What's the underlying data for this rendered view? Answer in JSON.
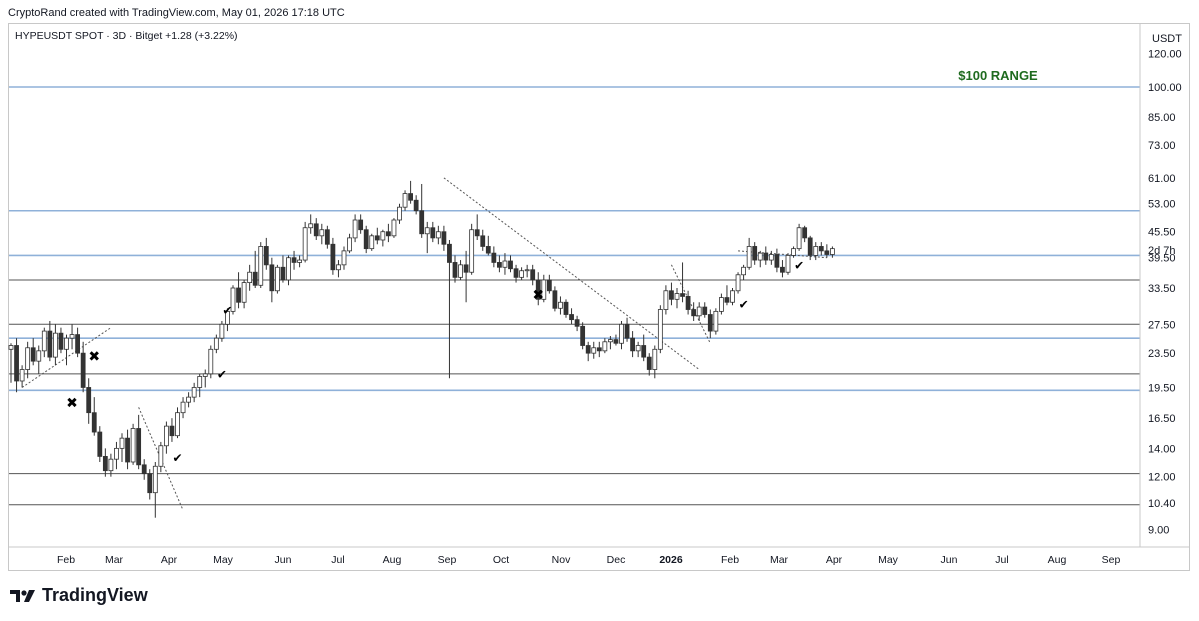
{
  "header": {
    "created_by": "CryptoRand created with TradingView.com, May 01, 2026 17:18 UTC"
  },
  "legend": {
    "symbol": "HYPEUSDT SPOT · 3D · Bitget",
    "change": "+1.28 (+3.22%)"
  },
  "brand": {
    "name": "TradingView",
    "icon": "tradingview-logo-icon"
  },
  "chart_data": {
    "type": "candlestick",
    "currency_label": "USDT",
    "y_scale": "log",
    "y_ticks": [
      "120.00",
      "100.00",
      "85.00",
      "73.00",
      "61.00",
      "53.00",
      "45.50",
      "39.50",
      "33.50",
      "27.50",
      "23.50",
      "19.50",
      "16.50",
      "14.00",
      "12.00",
      "10.40",
      "9.00"
    ],
    "countdown": "2d 7h",
    "x_ticks": [
      "Feb",
      "Mar",
      "Apr",
      "May",
      "Jun",
      "Jul",
      "Aug",
      "Sep",
      "Oct",
      "Nov",
      "Dec",
      "2026",
      "Feb",
      "Mar",
      "Apr",
      "May",
      "Jun",
      "Jul",
      "Aug",
      "Sep"
    ],
    "annotation": {
      "text": "$100 RANGE",
      "color": "#1f6b1f"
    },
    "horizontal_levels": [
      {
        "price": 100,
        "color": "#8fb1d9"
      },
      {
        "price": 51,
        "color": "#8fb1d9"
      },
      {
        "price": 40,
        "color": "#8fb1d9"
      },
      {
        "price": 35,
        "color": "#555555"
      },
      {
        "price": 27.5,
        "color": "#555555"
      },
      {
        "price": 25.5,
        "color": "#8fb1d9"
      },
      {
        "price": 21,
        "color": "#555555"
      },
      {
        "price": 19.2,
        "color": "#8fb1d9"
      },
      {
        "price": 12.2,
        "color": "#555555"
      },
      {
        "price": 10.3,
        "color": "#555555"
      }
    ],
    "markers": [
      {
        "type": "x",
        "index": 15,
        "price": 22.5
      },
      {
        "type": "x",
        "index": 11,
        "price": 17.5
      },
      {
        "type": "check",
        "index": 30,
        "price": 13
      },
      {
        "type": "check",
        "index": 39,
        "price": 29
      },
      {
        "type": "check",
        "index": 38,
        "price": 20.5
      },
      {
        "type": "x",
        "index": 95,
        "price": 31.5
      },
      {
        "type": "check",
        "index": 132,
        "price": 30
      },
      {
        "type": "check",
        "index": 142,
        "price": 37
      }
    ],
    "trendlines": [
      {
        "from": [
          2,
          19.5
        ],
        "to": [
          18,
          27
        ]
      },
      {
        "from": [
          23,
          17.5
        ],
        "to": [
          31,
          10
        ]
      },
      {
        "from": [
          78,
          61
        ],
        "to": [
          124,
          21.5
        ]
      },
      {
        "from": [
          119,
          38
        ],
        "to": [
          126,
          24.8
        ]
      },
      {
        "from": [
          131,
          41
        ],
        "to": [
          147,
          39.5
        ]
      }
    ],
    "candles": [
      {
        "o": 24.0,
        "h": 24.8,
        "l": 20.0,
        "c": 24.5
      },
      {
        "o": 24.5,
        "h": 25.5,
        "l": 19.0,
        "c": 20.2
      },
      {
        "o": 20.2,
        "h": 22.0,
        "l": 19.5,
        "c": 21.5
      },
      {
        "o": 21.5,
        "h": 25.0,
        "l": 20.5,
        "c": 24.2
      },
      {
        "o": 24.2,
        "h": 25.5,
        "l": 22.0,
        "c": 22.5
      },
      {
        "o": 22.5,
        "h": 24.5,
        "l": 21.0,
        "c": 23.8
      },
      {
        "o": 23.8,
        "h": 27.0,
        "l": 23.0,
        "c": 26.5
      },
      {
        "o": 26.5,
        "h": 28.0,
        "l": 22.5,
        "c": 23.0
      },
      {
        "o": 23.0,
        "h": 27.5,
        "l": 22.0,
        "c": 26.2
      },
      {
        "o": 26.2,
        "h": 27.0,
        "l": 23.5,
        "c": 24.0
      },
      {
        "o": 24.0,
        "h": 26.0,
        "l": 22.0,
        "c": 25.5
      },
      {
        "o": 25.5,
        "h": 27.5,
        "l": 24.0,
        "c": 26.0
      },
      {
        "o": 26.0,
        "h": 27.0,
        "l": 23.0,
        "c": 23.5
      },
      {
        "o": 23.5,
        "h": 25.0,
        "l": 19.0,
        "c": 19.5
      },
      {
        "o": 19.5,
        "h": 20.5,
        "l": 16.0,
        "c": 17.0
      },
      {
        "o": 17.0,
        "h": 18.5,
        "l": 15.0,
        "c": 15.3
      },
      {
        "o": 15.3,
        "h": 15.8,
        "l": 13.0,
        "c": 13.4
      },
      {
        "o": 13.4,
        "h": 14.0,
        "l": 12.0,
        "c": 12.4
      },
      {
        "o": 12.4,
        "h": 13.6,
        "l": 12.0,
        "c": 13.2
      },
      {
        "o": 13.2,
        "h": 14.5,
        "l": 12.5,
        "c": 14.0
      },
      {
        "o": 14.0,
        "h": 15.2,
        "l": 13.0,
        "c": 14.8
      },
      {
        "o": 14.8,
        "h": 15.5,
        "l": 12.5,
        "c": 13.0
      },
      {
        "o": 13.0,
        "h": 16.0,
        "l": 12.8,
        "c": 15.6
      },
      {
        "o": 15.6,
        "h": 16.8,
        "l": 12.5,
        "c": 12.8
      },
      {
        "o": 12.8,
        "h": 13.2,
        "l": 11.8,
        "c": 12.2
      },
      {
        "o": 12.2,
        "h": 12.5,
        "l": 10.6,
        "c": 11.0
      },
      {
        "o": 11.0,
        "h": 13.0,
        "l": 9.6,
        "c": 12.7
      },
      {
        "o": 12.7,
        "h": 14.5,
        "l": 12.3,
        "c": 14.2
      },
      {
        "o": 14.2,
        "h": 16.2,
        "l": 13.6,
        "c": 15.8
      },
      {
        "o": 15.8,
        "h": 16.5,
        "l": 14.5,
        "c": 15.0
      },
      {
        "o": 15.0,
        "h": 17.5,
        "l": 14.8,
        "c": 17.0
      },
      {
        "o": 17.0,
        "h": 18.5,
        "l": 16.5,
        "c": 18.0
      },
      {
        "o": 18.0,
        "h": 19.0,
        "l": 17.5,
        "c": 18.5
      },
      {
        "o": 18.5,
        "h": 20.0,
        "l": 18.0,
        "c": 19.5
      },
      {
        "o": 19.5,
        "h": 21.0,
        "l": 18.5,
        "c": 20.7
      },
      {
        "o": 20.7,
        "h": 21.5,
        "l": 19.5,
        "c": 21.0
      },
      {
        "o": 21.0,
        "h": 24.5,
        "l": 20.5,
        "c": 24.0
      },
      {
        "o": 24.0,
        "h": 26.0,
        "l": 23.5,
        "c": 25.5
      },
      {
        "o": 25.5,
        "h": 28.0,
        "l": 25.0,
        "c": 27.5
      },
      {
        "o": 27.5,
        "h": 30.0,
        "l": 26.5,
        "c": 29.5
      },
      {
        "o": 29.5,
        "h": 34.0,
        "l": 29.0,
        "c": 33.5
      },
      {
        "o": 33.5,
        "h": 36.5,
        "l": 30.0,
        "c": 31.0
      },
      {
        "o": 31.0,
        "h": 35.0,
        "l": 30.0,
        "c": 34.5
      },
      {
        "o": 34.5,
        "h": 38.0,
        "l": 33.0,
        "c": 36.5
      },
      {
        "o": 36.5,
        "h": 41.0,
        "l": 33.5,
        "c": 34.0
      },
      {
        "o": 34.0,
        "h": 43.0,
        "l": 33.5,
        "c": 42.0
      },
      {
        "o": 42.0,
        "h": 44.0,
        "l": 37.0,
        "c": 38.0
      },
      {
        "o": 38.0,
        "h": 39.5,
        "l": 31.0,
        "c": 33.0
      },
      {
        "o": 33.0,
        "h": 38.0,
        "l": 32.5,
        "c": 37.5
      },
      {
        "o": 37.5,
        "h": 40.0,
        "l": 34.5,
        "c": 35.0
      },
      {
        "o": 35.0,
        "h": 40.0,
        "l": 34.0,
        "c": 39.5
      },
      {
        "o": 39.5,
        "h": 41.0,
        "l": 37.0,
        "c": 38.5
      },
      {
        "o": 38.5,
        "h": 40.0,
        "l": 37.5,
        "c": 39.0
      },
      {
        "o": 39.0,
        "h": 48.0,
        "l": 38.5,
        "c": 46.5
      },
      {
        "o": 46.5,
        "h": 50.0,
        "l": 45.0,
        "c": 47.5
      },
      {
        "o": 47.5,
        "h": 49.0,
        "l": 43.5,
        "c": 44.5
      },
      {
        "o": 44.5,
        "h": 47.5,
        "l": 42.5,
        "c": 46.0
      },
      {
        "o": 46.0,
        "h": 47.0,
        "l": 41.5,
        "c": 42.5
      },
      {
        "o": 42.5,
        "h": 44.0,
        "l": 36.0,
        "c": 37.0
      },
      {
        "o": 37.0,
        "h": 39.0,
        "l": 35.5,
        "c": 38.0
      },
      {
        "o": 38.0,
        "h": 42.0,
        "l": 37.0,
        "c": 41.0
      },
      {
        "o": 41.0,
        "h": 45.0,
        "l": 40.5,
        "c": 44.0
      },
      {
        "o": 44.0,
        "h": 50.0,
        "l": 43.0,
        "c": 48.5
      },
      {
        "o": 48.5,
        "h": 50.0,
        "l": 45.0,
        "c": 46.0
      },
      {
        "o": 46.0,
        "h": 47.0,
        "l": 40.5,
        "c": 41.5
      },
      {
        "o": 41.5,
        "h": 45.0,
        "l": 41.0,
        "c": 44.5
      },
      {
        "o": 44.5,
        "h": 46.5,
        "l": 42.5,
        "c": 43.5
      },
      {
        "o": 43.5,
        "h": 46.0,
        "l": 42.0,
        "c": 45.5
      },
      {
        "o": 45.5,
        "h": 47.5,
        "l": 43.0,
        "c": 44.5
      },
      {
        "o": 44.5,
        "h": 49.0,
        "l": 44.0,
        "c": 48.5
      },
      {
        "o": 48.5,
        "h": 53.0,
        "l": 47.5,
        "c": 52.0
      },
      {
        "o": 52.0,
        "h": 57.0,
        "l": 51.0,
        "c": 56.0
      },
      {
        "o": 56.0,
        "h": 60.0,
        "l": 53.0,
        "c": 54.0
      },
      {
        "o": 54.0,
        "h": 55.5,
        "l": 50.0,
        "c": 51.0
      },
      {
        "o": 51.0,
        "h": 59.0,
        "l": 44.0,
        "c": 45.0
      },
      {
        "o": 45.0,
        "h": 48.0,
        "l": 40.5,
        "c": 46.5
      },
      {
        "o": 46.5,
        "h": 48.0,
        "l": 43.0,
        "c": 44.0
      },
      {
        "o": 44.0,
        "h": 47.0,
        "l": 42.5,
        "c": 45.5
      },
      {
        "o": 45.5,
        "h": 47.0,
        "l": 41.0,
        "c": 42.5
      },
      {
        "o": 42.5,
        "h": 43.5,
        "l": 20.5,
        "c": 38.5
      },
      {
        "o": 38.5,
        "h": 40.0,
        "l": 34.5,
        "c": 35.5
      },
      {
        "o": 35.5,
        "h": 39.0,
        "l": 35.0,
        "c": 38.0
      },
      {
        "o": 38.0,
        "h": 41.0,
        "l": 31.0,
        "c": 36.5
      },
      {
        "o": 36.5,
        "h": 47.5,
        "l": 36.0,
        "c": 46.0
      },
      {
        "o": 46.0,
        "h": 50.0,
        "l": 43.5,
        "c": 44.5
      },
      {
        "o": 44.5,
        "h": 46.0,
        "l": 41.0,
        "c": 42.0
      },
      {
        "o": 42.0,
        "h": 44.5,
        "l": 40.0,
        "c": 40.5
      },
      {
        "o": 40.5,
        "h": 42.0,
        "l": 37.5,
        "c": 38.5
      },
      {
        "o": 38.5,
        "h": 40.0,
        "l": 36.5,
        "c": 37.5
      },
      {
        "o": 37.5,
        "h": 40.5,
        "l": 36.0,
        "c": 38.8
      },
      {
        "o": 38.8,
        "h": 40.0,
        "l": 36.5,
        "c": 37.2
      },
      {
        "o": 37.2,
        "h": 38.0,
        "l": 34.5,
        "c": 35.5
      },
      {
        "o": 35.5,
        "h": 37.5,
        "l": 35.0,
        "c": 36.8
      },
      {
        "o": 36.8,
        "h": 38.0,
        "l": 35.5,
        "c": 37.0
      },
      {
        "o": 37.0,
        "h": 38.0,
        "l": 34.0,
        "c": 35.0
      },
      {
        "o": 35.0,
        "h": 36.5,
        "l": 30.5,
        "c": 31.5
      },
      {
        "o": 31.5,
        "h": 36.0,
        "l": 31.0,
        "c": 35.0
      },
      {
        "o": 35.0,
        "h": 36.0,
        "l": 32.5,
        "c": 33.0
      },
      {
        "o": 33.0,
        "h": 33.8,
        "l": 29.5,
        "c": 30.0
      },
      {
        "o": 30.0,
        "h": 32.0,
        "l": 29.0,
        "c": 31.0
      },
      {
        "o": 31.0,
        "h": 31.5,
        "l": 28.5,
        "c": 29.0
      },
      {
        "o": 29.0,
        "h": 30.0,
        "l": 27.5,
        "c": 28.2
      },
      {
        "o": 28.2,
        "h": 28.8,
        "l": 26.5,
        "c": 27.2
      },
      {
        "o": 27.2,
        "h": 27.8,
        "l": 24.0,
        "c": 24.5
      },
      {
        "o": 24.5,
        "h": 25.0,
        "l": 22.5,
        "c": 23.5
      },
      {
        "o": 23.5,
        "h": 25.0,
        "l": 22.8,
        "c": 24.2
      },
      {
        "o": 24.2,
        "h": 25.0,
        "l": 23.0,
        "c": 23.8
      },
      {
        "o": 23.8,
        "h": 25.5,
        "l": 23.5,
        "c": 25.0
      },
      {
        "o": 25.0,
        "h": 25.8,
        "l": 24.0,
        "c": 25.3
      },
      {
        "o": 25.3,
        "h": 26.0,
        "l": 24.5,
        "c": 24.8
      },
      {
        "o": 24.8,
        "h": 28.0,
        "l": 24.0,
        "c": 27.5
      },
      {
        "o": 27.5,
        "h": 28.5,
        "l": 25.0,
        "c": 25.5
      },
      {
        "o": 25.5,
        "h": 26.5,
        "l": 23.0,
        "c": 23.8
      },
      {
        "o": 23.8,
        "h": 25.0,
        "l": 23.0,
        "c": 24.5
      },
      {
        "o": 24.5,
        "h": 26.0,
        "l": 22.5,
        "c": 23.0
      },
      {
        "o": 23.0,
        "h": 23.5,
        "l": 20.8,
        "c": 21.5
      },
      {
        "o": 21.5,
        "h": 24.5,
        "l": 20.5,
        "c": 24.0
      },
      {
        "o": 24.0,
        "h": 30.5,
        "l": 23.5,
        "c": 29.8
      },
      {
        "o": 29.8,
        "h": 34.0,
        "l": 29.0,
        "c": 33.0
      },
      {
        "o": 33.0,
        "h": 34.5,
        "l": 30.5,
        "c": 31.5
      },
      {
        "o": 31.5,
        "h": 33.5,
        "l": 30.0,
        "c": 32.5
      },
      {
        "o": 32.5,
        "h": 38.5,
        "l": 31.0,
        "c": 32.0
      },
      {
        "o": 32.0,
        "h": 33.0,
        "l": 29.0,
        "c": 29.8
      },
      {
        "o": 29.8,
        "h": 31.0,
        "l": 28.0,
        "c": 28.8
      },
      {
        "o": 28.8,
        "h": 31.0,
        "l": 28.0,
        "c": 30.2
      },
      {
        "o": 30.2,
        "h": 31.0,
        "l": 28.5,
        "c": 29.0
      },
      {
        "o": 29.0,
        "h": 29.8,
        "l": 25.5,
        "c": 26.5
      },
      {
        "o": 26.5,
        "h": 30.0,
        "l": 26.0,
        "c": 29.5
      },
      {
        "o": 29.5,
        "h": 32.5,
        "l": 29.0,
        "c": 31.8
      },
      {
        "o": 31.8,
        "h": 34.0,
        "l": 30.5,
        "c": 31.0
      },
      {
        "o": 31.0,
        "h": 33.5,
        "l": 30.5,
        "c": 33.0
      },
      {
        "o": 33.0,
        "h": 36.5,
        "l": 32.5,
        "c": 36.0
      },
      {
        "o": 36.0,
        "h": 38.0,
        "l": 35.0,
        "c": 37.5
      },
      {
        "o": 37.5,
        "h": 44.0,
        "l": 37.0,
        "c": 42.0
      },
      {
        "o": 42.0,
        "h": 43.0,
        "l": 38.0,
        "c": 39.0
      },
      {
        "o": 39.0,
        "h": 41.0,
        "l": 37.5,
        "c": 40.5
      },
      {
        "o": 40.5,
        "h": 42.0,
        "l": 38.0,
        "c": 39.0
      },
      {
        "o": 39.0,
        "h": 41.0,
        "l": 38.0,
        "c": 40.2
      },
      {
        "o": 40.2,
        "h": 41.5,
        "l": 36.5,
        "c": 37.5
      },
      {
        "o": 37.5,
        "h": 39.0,
        "l": 35.5,
        "c": 36.5
      },
      {
        "o": 36.5,
        "h": 40.5,
        "l": 36.0,
        "c": 40.0
      },
      {
        "o": 40.0,
        "h": 42.0,
        "l": 39.5,
        "c": 41.5
      },
      {
        "o": 41.5,
        "h": 47.5,
        "l": 41.0,
        "c": 46.5
      },
      {
        "o": 46.5,
        "h": 47.0,
        "l": 43.0,
        "c": 44.0
      },
      {
        "o": 44.0,
        "h": 44.5,
        "l": 39.0,
        "c": 40.0
      },
      {
        "o": 40.0,
        "h": 43.0,
        "l": 39.0,
        "c": 42.0
      },
      {
        "o": 42.0,
        "h": 43.0,
        "l": 40.0,
        "c": 41.0
      },
      {
        "o": 41.0,
        "h": 42.5,
        "l": 39.5,
        "c": 40.2
      },
      {
        "o": 40.2,
        "h": 42.0,
        "l": 39.5,
        "c": 41.5
      }
    ]
  }
}
